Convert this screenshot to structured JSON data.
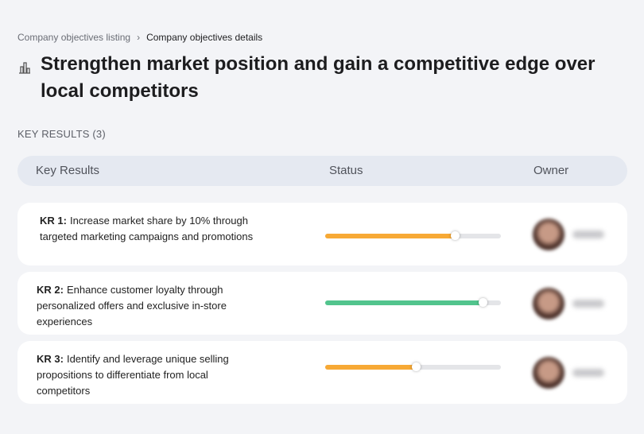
{
  "breadcrumb": [
    "Company objectives listing",
    "Company objectives details"
  ],
  "title": "Strengthen market position and gain a competitive edge over local competitors",
  "section_label": "KEY RESULTS (3)",
  "table": {
    "headers": [
      "Key Results",
      "Status",
      "Owner"
    ],
    "rows": [
      {
        "label": "KR 1:",
        "text": "Increase market share by 10% through targeted marketing campaigns and promotions",
        "progress": 74,
        "color": "#f7a935"
      },
      {
        "label": "KR 2:",
        "text": "Enhance customer loyalty through personalized offers and exclusive in-store experiences",
        "progress": 90,
        "color": "#52c48d"
      },
      {
        "label": "KR 3:",
        "text": "Identify and leverage unique selling propositions to differentiate from local competitors",
        "progress": 52,
        "color": "#f7a935"
      }
    ]
  }
}
